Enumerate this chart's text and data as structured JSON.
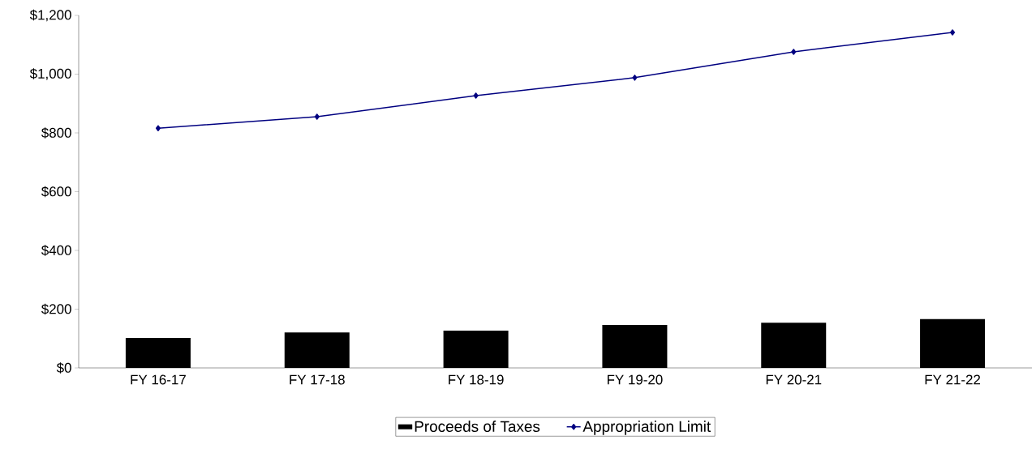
{
  "chart_data": {
    "type": "bar",
    "categories": [
      "FY 16-17",
      "FY 17-18",
      "FY 18-19",
      "FY 19-20",
      "FY 20-21",
      "FY 21-22"
    ],
    "series": [
      {
        "name": "Proceeds of Taxes",
        "color": "#000000",
        "values": [
          102,
          121,
          127,
          146,
          154,
          166
        ]
      },
      {
        "name": "Appropriation Limit",
        "type": "line",
        "color": "#000080",
        "marker": "diamond",
        "values": [
          816,
          855,
          927,
          988,
          1076,
          1142
        ]
      }
    ],
    "ylim": [
      0,
      1200
    ],
    "yticks": [
      {
        "value": 0,
        "label": "$0"
      },
      {
        "value": 200,
        "label": "$200"
      },
      {
        "value": 400,
        "label": "$400"
      },
      {
        "value": 600,
        "label": "$600"
      },
      {
        "value": 800,
        "label": "$800"
      },
      {
        "value": 1000,
        "label": "$1,000"
      },
      {
        "value": 1200,
        "label": "$1,200"
      }
    ],
    "grid": false,
    "legend": "bottom"
  }
}
